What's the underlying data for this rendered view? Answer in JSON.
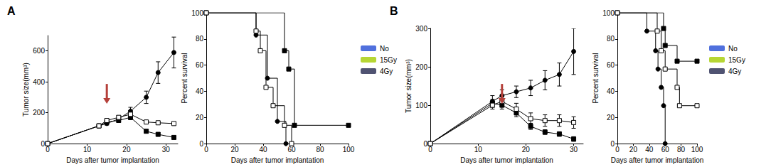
{
  "chart_data": [
    {
      "type": "line",
      "title": "A",
      "x_label": "Days after tumor implantation",
      "y_label": "Tumor size(mm³)",
      "xlim": [
        0,
        33
      ],
      "xticks": [
        0,
        10,
        20,
        30
      ],
      "ylim": [
        0,
        700
      ],
      "yticks": [
        0,
        200,
        400,
        600
      ],
      "grid": false,
      "annotations": [
        {
          "type": "arrow",
          "x": 15,
          "color": "#b5403a"
        }
      ],
      "series": [
        {
          "name": "No",
          "color": "#000000",
          "marker": "circle",
          "x": [
            0,
            13,
            15,
            18,
            21,
            25,
            28,
            32
          ],
          "values": [
            0,
            115,
            130,
            160,
            210,
            300,
            460,
            590
          ],
          "errors": [
            0,
            10,
            10,
            15,
            25,
            40,
            70,
            100
          ]
        },
        {
          "name": "15Gy",
          "color": "#000000",
          "marker": "square",
          "x": [
            0,
            13,
            15,
            18,
            21,
            25,
            28,
            32
          ],
          "values": [
            0,
            115,
            140,
            150,
            170,
            80,
            60,
            40
          ],
          "errors": [
            0,
            10,
            10,
            10,
            15,
            10,
            10,
            10
          ]
        },
        {
          "name": "4Gy",
          "color": "#000000",
          "marker": "open_square",
          "x": [
            0,
            13,
            15,
            18,
            21,
            25,
            28,
            32
          ],
          "values": [
            0,
            115,
            150,
            170,
            190,
            140,
            135,
            130
          ],
          "errors": [
            0,
            10,
            10,
            10,
            15,
            10,
            10,
            10
          ]
        }
      ]
    },
    {
      "type": "line",
      "line_style": "step",
      "x_label": "Days after tumor implantation",
      "y_label": "Percent survival",
      "xlim": [
        0,
        100
      ],
      "xticks": [
        0,
        20,
        40,
        60,
        80,
        100
      ],
      "ylim": [
        0,
        100
      ],
      "yticks": [
        0,
        20,
        40,
        60,
        80,
        100
      ],
      "grid": false,
      "legend": "right",
      "series": [
        {
          "name": "No",
          "color": "#000000",
          "marker": "circle",
          "x": [
            0,
            35,
            43,
            50,
            56
          ],
          "values": [
            100,
            83,
            50,
            17,
            0
          ]
        },
        {
          "name": "15Gy",
          "color": "#000000",
          "marker": "square",
          "x": [
            0,
            55,
            58,
            62,
            100
          ],
          "values": [
            100,
            71,
            57,
            14,
            14
          ]
        },
        {
          "name": "4Gy",
          "color": "#000000",
          "marker": "open_square",
          "x": [
            0,
            35,
            38,
            42,
            47,
            55,
            60
          ],
          "values": [
            100,
            86,
            71,
            43,
            29,
            14,
            0
          ]
        }
      ]
    },
    {
      "type": "line",
      "title": "B",
      "x_label": "Days after tumor implantation",
      "y_label": "Tumor size(mm³)",
      "xlim": [
        0,
        32
      ],
      "xticks": [
        0,
        10,
        20,
        30
      ],
      "ylim": [
        0,
        300
      ],
      "yticks": [
        0,
        100,
        200,
        300
      ],
      "grid": false,
      "annotations": [
        {
          "type": "arrow",
          "x": 15,
          "color": "#b5403a"
        }
      ],
      "series": [
        {
          "name": "No",
          "color": "#000000",
          "marker": "circle",
          "x": [
            0,
            13,
            15,
            18,
            21,
            24,
            27,
            30
          ],
          "values": [
            0,
            110,
            125,
            135,
            145,
            165,
            180,
            240
          ],
          "errors": [
            0,
            15,
            15,
            15,
            20,
            25,
            30,
            60
          ]
        },
        {
          "name": "15Gy",
          "color": "#000000",
          "marker": "square",
          "x": [
            0,
            13,
            15,
            18,
            21,
            24,
            27,
            30
          ],
          "values": [
            0,
            105,
            100,
            80,
            45,
            30,
            25,
            12
          ],
          "errors": [
            0,
            10,
            10,
            10,
            8,
            6,
            6,
            6
          ]
        },
        {
          "name": "4Gy",
          "color": "#000000",
          "marker": "open_square",
          "x": [
            0,
            13,
            15,
            18,
            21,
            24,
            27,
            30
          ],
          "values": [
            0,
            100,
            110,
            90,
            65,
            60,
            60,
            55
          ],
          "errors": [
            0,
            10,
            12,
            15,
            15,
            15,
            15,
            15
          ]
        }
      ]
    },
    {
      "type": "line",
      "line_style": "step",
      "x_label": "Days after tumor implantation",
      "y_label": "Percent survival",
      "xlim": [
        0,
        100
      ],
      "xticks": [
        0,
        20,
        40,
        60,
        80,
        100
      ],
      "ylim": [
        0,
        100
      ],
      "yticks": [
        0,
        20,
        40,
        60,
        80,
        100
      ],
      "grid": false,
      "legend": "right",
      "series": [
        {
          "name": "No",
          "color": "#000000",
          "marker": "circle",
          "x": [
            0,
            37,
            48,
            51,
            55,
            58,
            60
          ],
          "values": [
            100,
            86,
            71,
            57,
            43,
            29,
            0
          ]
        },
        {
          "name": "15Gy",
          "color": "#000000",
          "marker": "square",
          "x": [
            0,
            58,
            60,
            75,
            100
          ],
          "values": [
            100,
            88,
            75,
            63,
            63
          ]
        },
        {
          "name": "4Gy",
          "color": "#000000",
          "marker": "open_square",
          "x": [
            0,
            50,
            55,
            60,
            75,
            78,
            100
          ],
          "values": [
            100,
            86,
            71,
            57,
            43,
            29,
            29
          ]
        }
      ]
    }
  ]
}
